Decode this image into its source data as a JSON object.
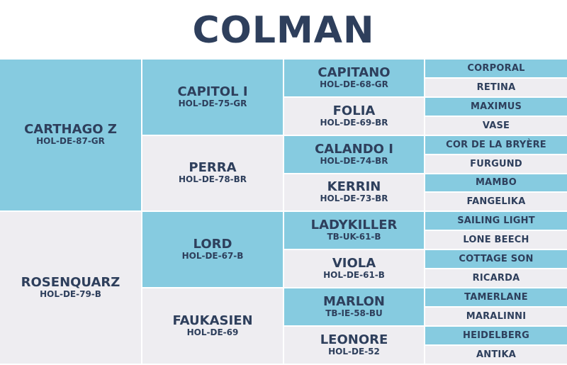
{
  "title": "COLMAN",
  "colors": {
    "blue": "#86cbe0",
    "grey": "#eeedf1",
    "text": "#2e3f5c"
  },
  "pedigree": {
    "sire": {
      "name": "CARTHAGO Z",
      "reg": "HOL-DE-87-GR"
    },
    "dam": {
      "name": "ROSENQUARZ",
      "reg": "HOL-DE-79-B"
    },
    "gen2": [
      {
        "name": "CAPITOL I",
        "reg": "HOL-DE-75-GR"
      },
      {
        "name": "PERRA",
        "reg": "HOL-DE-78-BR"
      },
      {
        "name": "LORD",
        "reg": "HOL-DE-67-B"
      },
      {
        "name": "FAUKASIEN",
        "reg": "HOL-DE-69"
      }
    ],
    "gen3": [
      {
        "name": "CAPITANO",
        "reg": "HOL-DE-68-GR"
      },
      {
        "name": "FOLIA",
        "reg": "HOL-DE-69-BR"
      },
      {
        "name": "CALANDO I",
        "reg": "HOL-DE-74-BR"
      },
      {
        "name": "KERRIN",
        "reg": "HOL-DE-73-BR"
      },
      {
        "name": "LADYKILLER",
        "reg": "TB-UK-61-B"
      },
      {
        "name": "VIOLA",
        "reg": "HOL-DE-61-B"
      },
      {
        "name": "MARLON",
        "reg": "TB-IE-58-BU"
      },
      {
        "name": "LEONORE",
        "reg": "HOL-DE-52"
      }
    ],
    "gen4": [
      "CORPORAL",
      "RETINA",
      "MAXIMUS",
      "VASE",
      "COR DE LA BRYÈRE",
      "FURGUND",
      "MAMBO",
      "FANGELIKA",
      "SAILING LIGHT",
      "LONE BEECH",
      "COTTAGE SON",
      "RICARDA",
      "TAMERLANE",
      "MARALINNI",
      "HEIDELBERG",
      "ANTIKA"
    ]
  }
}
